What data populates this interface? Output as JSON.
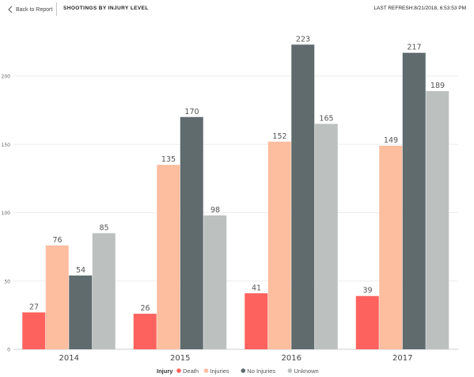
{
  "header": {
    "back_label": "Back to Report",
    "page_title": "SHOOTINGS BY INJURY LEVEL",
    "refresh_label": "LAST REFRESH:8/21/2018, 6:53:53 PM"
  },
  "chart_data": {
    "type": "bar",
    "title": "",
    "xlabel": "",
    "ylabel": "",
    "categories": [
      "2014",
      "2015",
      "2016",
      "2017"
    ],
    "series": [
      {
        "name": "Death",
        "color": "#fd625e",
        "values": [
          27,
          26,
          41,
          39
        ]
      },
      {
        "name": "Injuries",
        "color": "#fdbd9f",
        "values": [
          76,
          135,
          152,
          149
        ]
      },
      {
        "name": "No Injuries",
        "color": "#5f6b6d",
        "values": [
          54,
          170,
          223,
          217
        ]
      },
      {
        "name": "Unknown",
        "color": "#bcc1bf",
        "values": [
          85,
          98,
          165,
          189
        ]
      }
    ],
    "ylim": [
      0,
      250
    ],
    "yticks": [
      0,
      50,
      100,
      150,
      200
    ],
    "grid": true,
    "legend": {
      "title": "Injury",
      "position": "bottom"
    }
  }
}
